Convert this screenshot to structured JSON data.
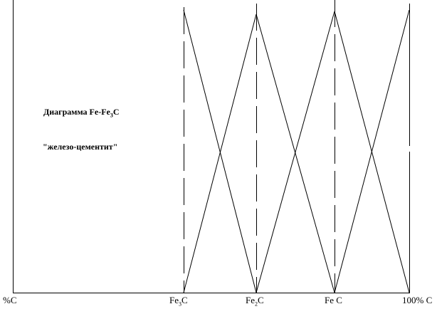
{
  "title": {
    "main": "Диаграмма Fe-Fe",
    "sub": "3",
    "tail": "C"
  },
  "subtitle": "\"железо-цементит\"",
  "axis_labels": [
    {
      "text": "%C"
    },
    {
      "text": "Fe",
      "sub": "3",
      "tail": "C"
    },
    {
      "text": "Fe",
      "sub": "2",
      "tail": "C"
    },
    {
      "text": "Fe C"
    },
    {
      "text": "100% C"
    }
  ],
  "colors": {
    "line": "#000000",
    "background": "#ffffff"
  }
}
